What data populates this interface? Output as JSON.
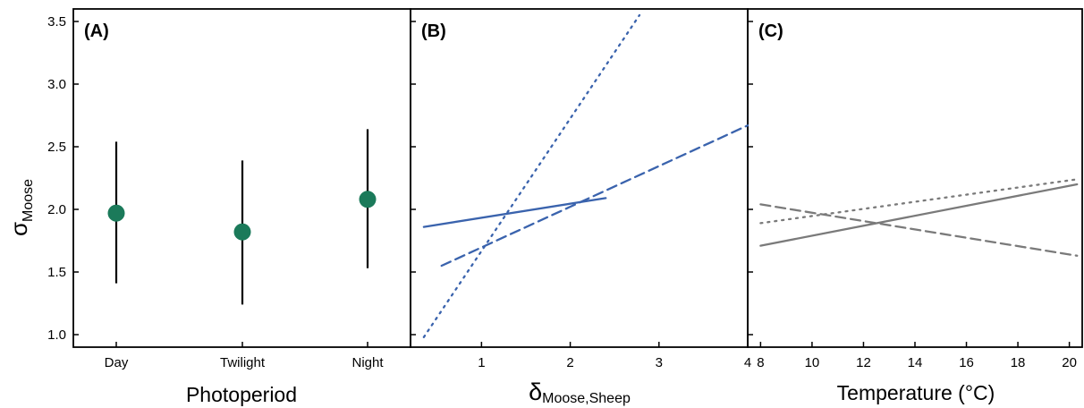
{
  "y_axis": {
    "symbol": "σ",
    "subscript": "Moose",
    "ticks": [
      "1.0",
      "1.5",
      "2.0",
      "2.5",
      "3.0",
      "3.5"
    ],
    "ylim": [
      0.9,
      3.6
    ]
  },
  "panels": [
    {
      "label": "(A)",
      "xlabel": "Photoperiod",
      "x_ticks": [
        "Day",
        "Twilight",
        "Night"
      ]
    },
    {
      "label": "(B)",
      "xlabel_symbol": "δ",
      "xlabel_sub": "Moose,Sheep",
      "x_ticks": [
        "1",
        "2",
        "3",
        "4"
      ]
    },
    {
      "label": "(C)",
      "xlabel": "Temperature (°C)",
      "x_ticks": [
        "8",
        "10",
        "12",
        "14",
        "16",
        "18",
        "20"
      ]
    }
  ],
  "colors": {
    "point": "#1b7a5a",
    "panel_b_lines": "#3a63ad",
    "panel_c_lines": "#7a7a7a",
    "error_bar": "#000000"
  },
  "chart_data": [
    {
      "type": "scatter",
      "panel": "(A)",
      "categories": [
        "Day",
        "Twilight",
        "Night"
      ],
      "values": [
        1.97,
        1.82,
        2.08
      ],
      "error_low": [
        1.41,
        1.24,
        1.53
      ],
      "error_high": [
        2.54,
        2.39,
        2.64
      ],
      "xlabel": "Photoperiod",
      "ylabel": "σMoose",
      "ylim": [
        0.9,
        3.6
      ]
    },
    {
      "type": "line",
      "panel": "(B)",
      "xlim": [
        0.2,
        4.0
      ],
      "ylim": [
        0.9,
        3.6
      ],
      "series": [
        {
          "style": "solid",
          "x": [
            0.35,
            2.4
          ],
          "y": [
            1.86,
            2.09
          ]
        },
        {
          "style": "dashed",
          "x": [
            0.55,
            4.0
          ],
          "y": [
            1.55,
            2.67
          ]
        },
        {
          "style": "dotted",
          "x": [
            0.35,
            2.78
          ],
          "y": [
            0.98,
            3.55
          ]
        }
      ],
      "xlabel": "δMoose,Sheep"
    },
    {
      "type": "line",
      "panel": "(C)",
      "xlim": [
        7.5,
        20.5
      ],
      "ylim": [
        0.9,
        3.6
      ],
      "series": [
        {
          "style": "solid",
          "x": [
            8,
            20.3
          ],
          "y": [
            1.71,
            2.2
          ]
        },
        {
          "style": "dashed",
          "x": [
            8,
            20.3
          ],
          "y": [
            2.04,
            1.63
          ]
        },
        {
          "style": "dotted",
          "x": [
            8,
            20.3
          ],
          "y": [
            1.89,
            2.24
          ]
        }
      ],
      "xlabel": "Temperature (°C)"
    }
  ]
}
